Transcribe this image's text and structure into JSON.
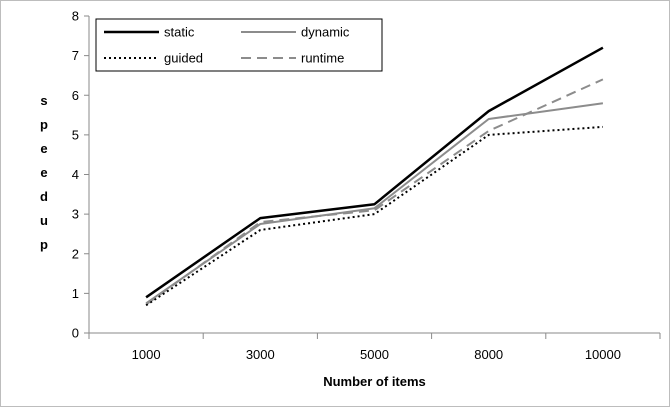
{
  "chart_data": {
    "type": "line",
    "title": "",
    "xlabel": "Number of items",
    "ylabel": "speedup",
    "categories": [
      "1000",
      "3000",
      "5000",
      "8000",
      "10000"
    ],
    "ylim": [
      0,
      8
    ],
    "yticks": [
      0,
      1,
      2,
      3,
      4,
      5,
      6,
      7,
      8
    ],
    "grid": false,
    "legend_position": "top-left",
    "series": [
      {
        "name": "static",
        "values": [
          0.9,
          2.9,
          3.25,
          5.6,
          7.2
        ],
        "color": "#000000",
        "style": "solid"
      },
      {
        "name": "dynamic",
        "values": [
          0.75,
          2.75,
          3.15,
          5.4,
          5.8
        ],
        "color": "#8c8c8c",
        "style": "solid"
      },
      {
        "name": "guided",
        "values": [
          0.7,
          2.6,
          3.0,
          5.0,
          5.2
        ],
        "color": "#000000",
        "style": "dotted"
      },
      {
        "name": "runtime",
        "values": [
          0.72,
          2.8,
          3.1,
          5.1,
          6.4
        ],
        "color": "#8c8c8c",
        "style": "dashed"
      }
    ]
  }
}
